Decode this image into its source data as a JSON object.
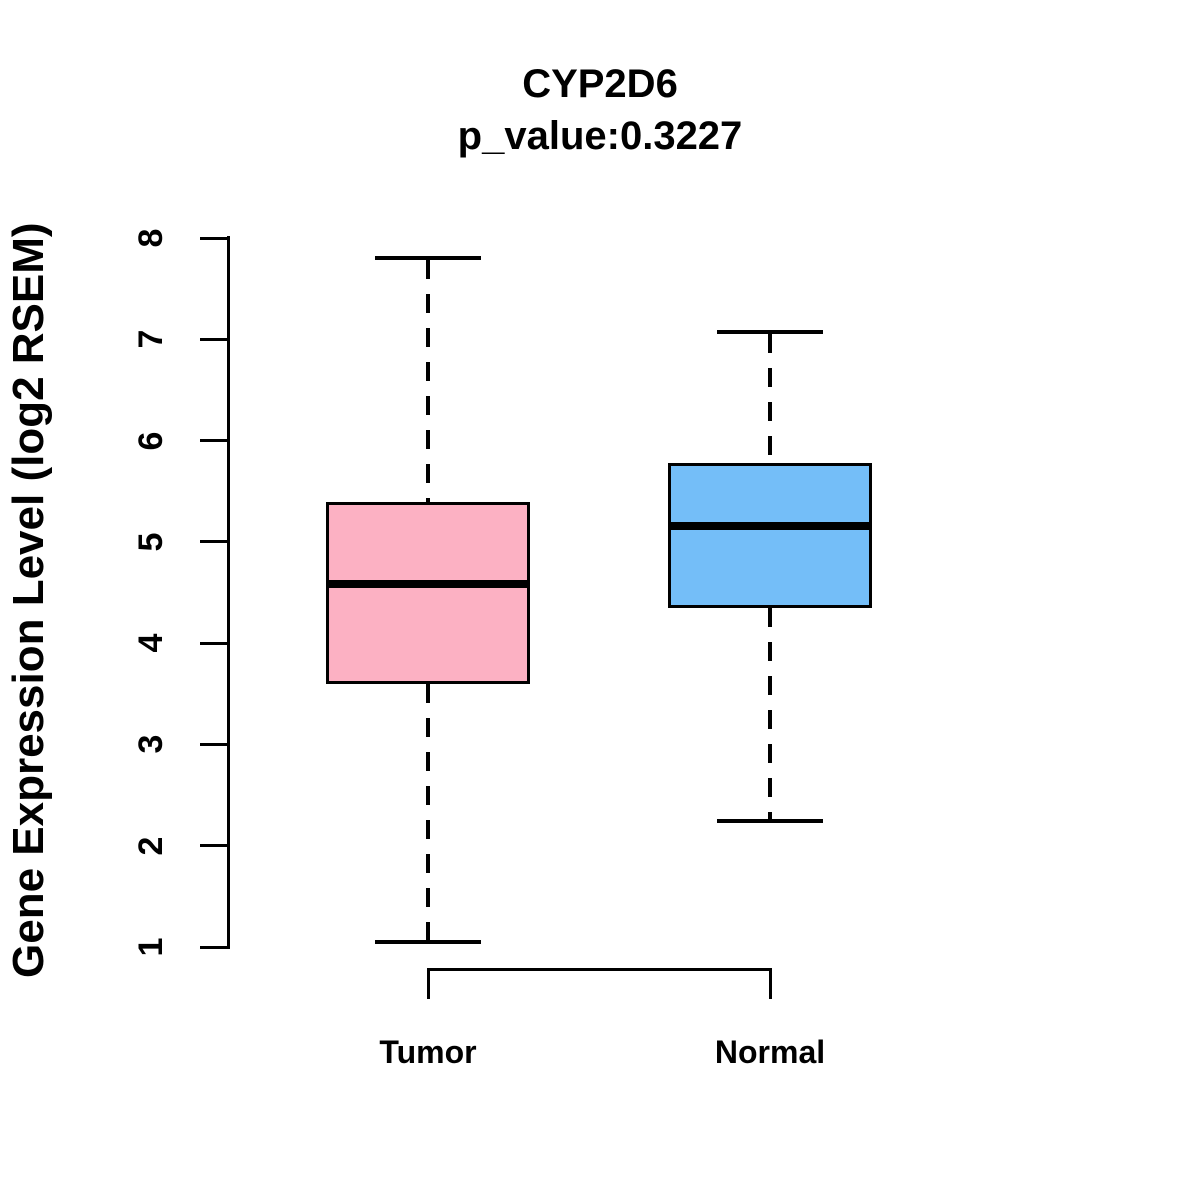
{
  "chart_data": {
    "type": "boxplot",
    "title": "CYP2D6",
    "subtitle": "p_value:0.3227",
    "ylabel": "Gene Expression Level (log2 RSEM)",
    "ylim": [
      1,
      8
    ],
    "yticks": [
      "1",
      "2",
      "3",
      "4",
      "5",
      "6",
      "7",
      "8"
    ],
    "categories": [
      "Tumor",
      "Normal"
    ],
    "grid": false,
    "legend": "none",
    "series": [
      {
        "name": "Tumor",
        "color": "#FCB1C3",
        "lower_whisker": 1.05,
        "q1": 3.6,
        "median": 4.58,
        "q3": 5.39,
        "upper_whisker": 7.8
      },
      {
        "name": "Normal",
        "color": "#74BEF8",
        "lower_whisker": 2.24,
        "q1": 4.35,
        "median": 5.16,
        "q3": 5.78,
        "upper_whisker": 7.07
      }
    ],
    "colors": {
      "line": "#000000",
      "text": "#000000",
      "background": "#FFFFFF"
    }
  }
}
